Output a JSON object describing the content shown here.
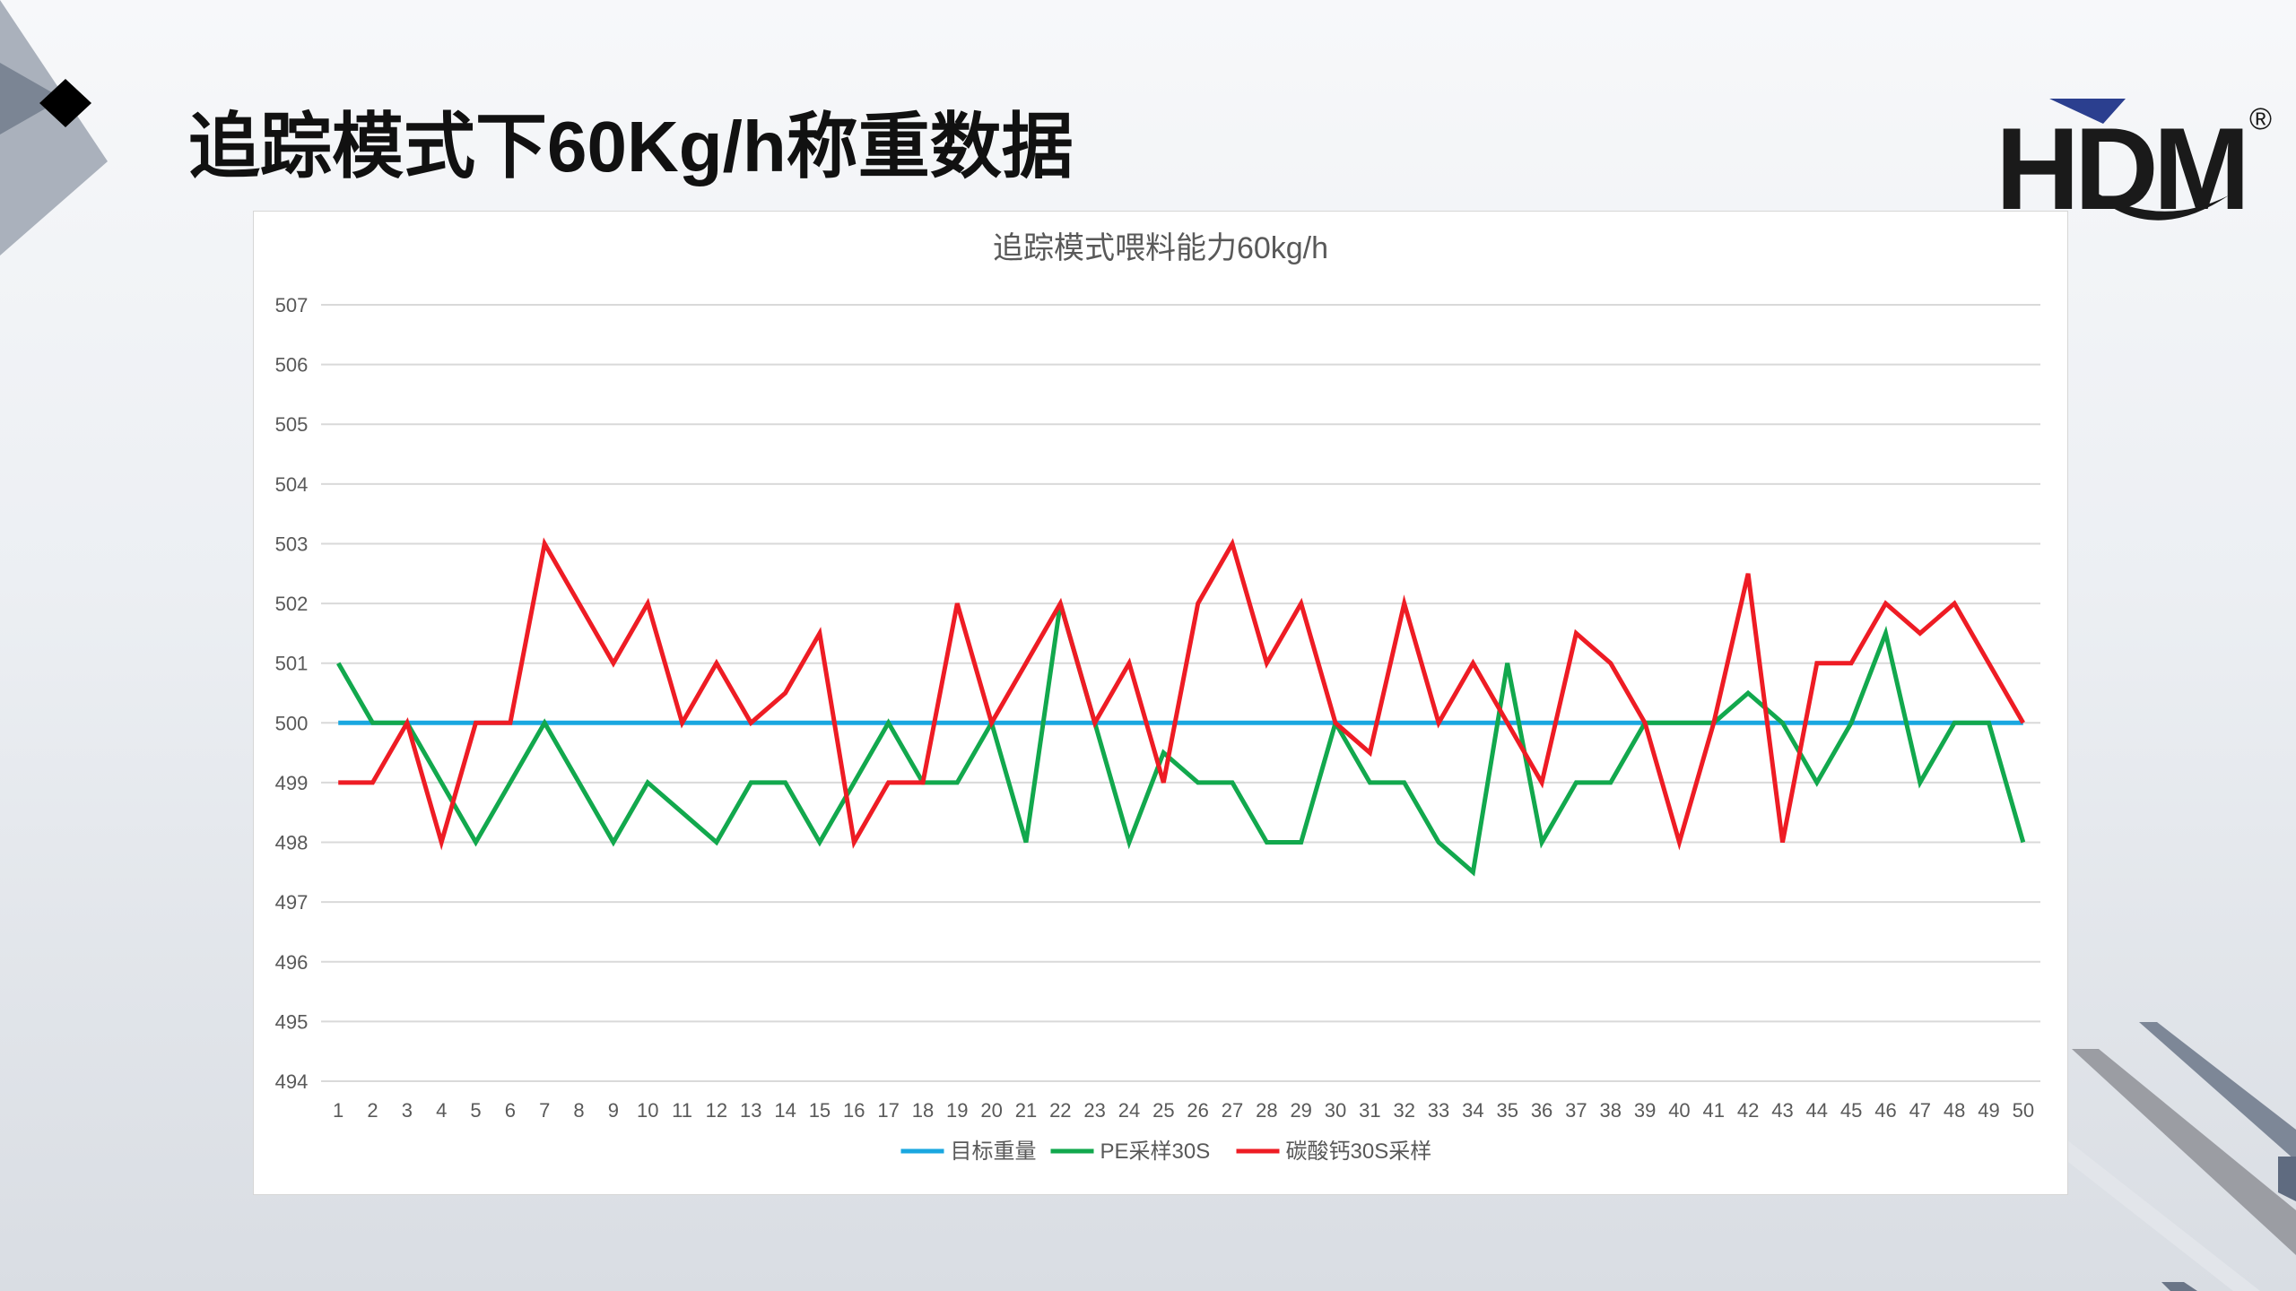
{
  "slide": {
    "title": "追踪模式下60Kg/h称重数据",
    "logo_text": "HDM",
    "logo_mark": "®"
  },
  "colors": {
    "target": "#1aa7e0",
    "pe": "#12a84d",
    "caco3": "#ee1c24",
    "grid": "#d9d9d9",
    "axis_text": "#595959",
    "logo": "#1a1a1a",
    "logo_accent": "#2b3f8f"
  },
  "chart_data": {
    "type": "line",
    "title": "追踪模式喂料能力60kg/h",
    "xlabel": "",
    "ylabel": "",
    "ylim": [
      494,
      507
    ],
    "yticks": [
      "494",
      "495",
      "496",
      "497",
      "498",
      "499",
      "500",
      "501",
      "502",
      "503",
      "504",
      "505",
      "506",
      "507"
    ],
    "grid": true,
    "legend_position": "bottom",
    "categories": [
      "1",
      "2",
      "3",
      "4",
      "5",
      "6",
      "7",
      "8",
      "9",
      "10",
      "11",
      "12",
      "13",
      "14",
      "15",
      "16",
      "17",
      "18",
      "19",
      "20",
      "21",
      "22",
      "23",
      "24",
      "25",
      "26",
      "27",
      "28",
      "29",
      "30",
      "31",
      "32",
      "33",
      "34",
      "35",
      "36",
      "37",
      "38",
      "39",
      "40",
      "41",
      "42",
      "43",
      "44",
      "45",
      "46",
      "47",
      "48",
      "49",
      "50"
    ],
    "series": [
      {
        "name": "目标重量",
        "color": "#1aa7e0",
        "values": [
          500,
          500,
          500,
          500,
          500,
          500,
          500,
          500,
          500,
          500,
          500,
          500,
          500,
          500,
          500,
          500,
          500,
          500,
          500,
          500,
          500,
          500,
          500,
          500,
          500,
          500,
          500,
          500,
          500,
          500,
          500,
          500,
          500,
          500,
          500,
          500,
          500,
          500,
          500,
          500,
          500,
          500,
          500,
          500,
          500,
          500,
          500,
          500,
          500,
          500
        ]
      },
      {
        "name": "PE采样30S",
        "color": "#12a84d",
        "values": [
          501,
          500,
          500,
          499,
          498,
          499,
          500,
          499,
          498,
          499,
          498.5,
          498,
          499,
          499,
          498,
          499,
          500,
          499,
          499,
          500,
          498,
          502,
          500,
          498,
          499.5,
          499,
          499,
          498,
          498,
          500,
          499,
          499,
          498,
          497.5,
          501,
          498,
          499,
          499,
          500,
          500,
          500,
          500.5,
          500,
          499,
          500,
          501.5,
          499,
          500,
          500,
          498
        ]
      },
      {
        "name": "碳酸钙30S采样",
        "color": "#ee1c24",
        "values": [
          499,
          499,
          500,
          498,
          500,
          500,
          503,
          502,
          501,
          502,
          500,
          501,
          500,
          500.5,
          501.5,
          498,
          499,
          499,
          502,
          500,
          501,
          502,
          500,
          501,
          499,
          502,
          503,
          501,
          502,
          500,
          499.5,
          502,
          500,
          501,
          500,
          499,
          501.5,
          501,
          500,
          498,
          500,
          502.5,
          498,
          501,
          501,
          502,
          501.5,
          502,
          501,
          500
        ]
      }
    ]
  }
}
